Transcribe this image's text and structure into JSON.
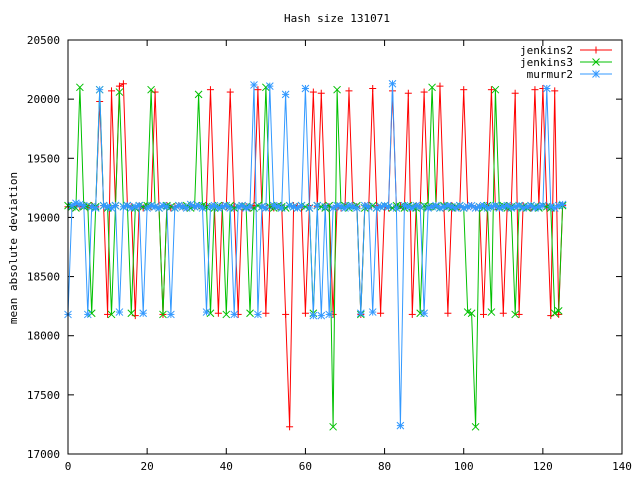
{
  "chart_data": {
    "type": "line",
    "title": "Hash size 131071",
    "xlabel": "",
    "ylabel": "mean absolute deviation",
    "xlim": [
      0,
      140
    ],
    "ylim": [
      17000,
      20500
    ],
    "xticks": [
      0,
      20,
      40,
      60,
      80,
      100,
      120,
      140
    ],
    "yticks": [
      17000,
      17500,
      18000,
      18500,
      19000,
      19500,
      20000,
      20500
    ],
    "grid": false,
    "legend_position": "top-right",
    "series": [
      {
        "name": "jenkins2",
        "color": "#ff0000",
        "marker": "plus",
        "x": [
          0,
          1,
          2,
          3,
          4,
          5,
          6,
          7,
          8,
          9,
          10,
          11,
          12,
          13,
          14,
          15,
          16,
          17,
          18,
          19,
          20,
          21,
          22,
          23,
          24,
          25,
          26,
          27,
          28,
          29,
          30,
          31,
          32,
          33,
          34,
          35,
          36,
          37,
          38,
          39,
          40,
          41,
          42,
          43,
          44,
          45,
          46,
          47,
          48,
          49,
          50,
          51,
          52,
          53,
          54,
          55,
          56,
          57,
          58,
          59,
          60,
          61,
          62,
          63,
          64,
          65,
          66,
          67,
          68,
          69,
          70,
          71,
          72,
          73,
          74,
          75,
          76,
          77,
          78,
          79,
          80,
          81,
          82,
          83,
          84,
          85,
          86,
          87,
          88,
          89,
          90,
          91,
          92,
          93,
          94,
          95,
          96,
          97,
          98,
          99,
          100,
          101,
          102,
          103,
          104,
          105,
          106,
          107,
          108,
          109,
          110,
          111,
          112,
          113,
          114,
          115,
          116,
          117,
          118,
          119,
          120,
          121,
          122,
          123,
          124,
          125
        ],
        "y": [
          19090,
          19080,
          19100,
          19090,
          19100,
          19080,
          19100,
          19090,
          19980,
          19100,
          18180,
          20070,
          19100,
          20110,
          20130,
          19100,
          19090,
          18170,
          19100,
          19080,
          19100,
          19090,
          20060,
          19090,
          18180,
          19100,
          19080,
          19090,
          19100,
          19090,
          19080,
          19100,
          19090,
          19100,
          19080,
          19100,
          20080,
          19090,
          18190,
          19100,
          19090,
          20060,
          19090,
          18180,
          19100,
          19090,
          19080,
          19100,
          20080,
          19090,
          18190,
          19100,
          19080,
          19090,
          19100,
          18180,
          17230,
          19100,
          19090,
          19080,
          18190,
          19100,
          20060,
          19090,
          20050,
          19100,
          19090,
          18180,
          19100,
          19080,
          19090,
          20070,
          19100,
          19090,
          18180,
          19100,
          19080,
          20090,
          19100,
          18190,
          19090,
          19080,
          20070,
          19090,
          19100,
          19080,
          20050,
          18180,
          19100,
          19090,
          20060,
          19080,
          19090,
          19100,
          20110,
          19090,
          18190,
          19100,
          19080,
          19090,
          20080,
          19090,
          19100,
          19080,
          19090,
          18180,
          19100,
          20080,
          19090,
          19080,
          18190,
          19100,
          19090,
          20050,
          18180,
          19100,
          19090,
          19080,
          20080,
          19100,
          20090,
          19090,
          18170,
          20070,
          18180,
          19100
        ]
      },
      {
        "name": "jenkins3",
        "color": "#00c000",
        "marker": "cross",
        "x": [
          0,
          1,
          2,
          3,
          4,
          5,
          6,
          7,
          8,
          9,
          10,
          11,
          12,
          13,
          14,
          15,
          16,
          17,
          18,
          19,
          20,
          21,
          22,
          23,
          24,
          25,
          26,
          27,
          28,
          29,
          30,
          31,
          32,
          33,
          34,
          35,
          36,
          37,
          38,
          39,
          40,
          41,
          42,
          43,
          44,
          45,
          46,
          47,
          48,
          49,
          50,
          51,
          52,
          53,
          54,
          55,
          56,
          57,
          58,
          59,
          60,
          61,
          62,
          63,
          64,
          65,
          66,
          67,
          68,
          69,
          70,
          71,
          72,
          73,
          74,
          75,
          76,
          77,
          78,
          79,
          80,
          81,
          82,
          83,
          84,
          85,
          86,
          87,
          88,
          89,
          90,
          91,
          92,
          93,
          94,
          95,
          96,
          97,
          98,
          99,
          100,
          101,
          102,
          103,
          104,
          105,
          106,
          107,
          108,
          109,
          110,
          111,
          112,
          113,
          114,
          115,
          116,
          117,
          118,
          119,
          120,
          121,
          122,
          123,
          124,
          125
        ],
        "y": [
          19100,
          19090,
          19080,
          20100,
          19090,
          19100,
          18190,
          19090,
          20080,
          19100,
          19080,
          18180,
          19100,
          20060,
          19090,
          19100,
          18190,
          19080,
          19100,
          19090,
          19100,
          20080,
          19090,
          19080,
          18180,
          19100,
          19090,
          19080,
          19100,
          19090,
          19100,
          19080,
          19090,
          20040,
          19100,
          19090,
          18190,
          19080,
          19100,
          19090,
          18180,
          19100,
          19080,
          19090,
          19100,
          19090,
          18190,
          19080,
          19100,
          19090,
          20100,
          19090,
          19080,
          19100,
          19090,
          19080,
          19100,
          19090,
          19080,
          19100,
          19090,
          19080,
          18190,
          19100,
          19090,
          19080,
          19100,
          17230,
          20080,
          19090,
          19100,
          19080,
          19090,
          19100,
          18180,
          19080,
          19090,
          19100,
          19080,
          19090,
          19100,
          19090,
          19080,
          19100,
          19090,
          19080,
          19100,
          19090,
          19080,
          18190,
          19100,
          19090,
          20100,
          19090,
          19080,
          19100,
          19090,
          19080,
          19090,
          19100,
          19080,
          18200,
          18190,
          17230,
          19090,
          19080,
          19100,
          18200,
          20080,
          19090,
          19100,
          19080,
          19090,
          18180,
          19100,
          19090,
          19080,
          19100,
          19090,
          19080,
          19100,
          19090,
          19080,
          18190,
          18210,
          19100
        ]
      },
      {
        "name": "murmur2",
        "color": "#3399ff",
        "marker": "star",
        "x": [
          0,
          1,
          2,
          3,
          4,
          5,
          6,
          7,
          8,
          9,
          10,
          11,
          12,
          13,
          14,
          15,
          16,
          17,
          18,
          19,
          20,
          21,
          22,
          23,
          24,
          25,
          26,
          27,
          28,
          29,
          30,
          31,
          32,
          33,
          34,
          35,
          36,
          37,
          38,
          39,
          40,
          41,
          42,
          43,
          44,
          45,
          46,
          47,
          48,
          49,
          50,
          51,
          52,
          53,
          54,
          55,
          56,
          57,
          58,
          59,
          60,
          61,
          62,
          63,
          64,
          65,
          66,
          67,
          68,
          69,
          70,
          71,
          72,
          73,
          74,
          75,
          76,
          77,
          78,
          79,
          80,
          81,
          82,
          83,
          84,
          85,
          86,
          87,
          88,
          89,
          90,
          91,
          92,
          93,
          94,
          95,
          96,
          97,
          98,
          99,
          100,
          101,
          102,
          103,
          104,
          105,
          106,
          107,
          108,
          109,
          110,
          111,
          112,
          113,
          114,
          115,
          116,
          117,
          118,
          119,
          120,
          121,
          122,
          123,
          124,
          125
        ],
        "y": [
          18180,
          19100,
          19120,
          19110,
          19100,
          18180,
          19090,
          19080,
          20080,
          19100,
          19090,
          19080,
          19100,
          18200,
          19090,
          19100,
          19080,
          19090,
          19100,
          18190,
          19080,
          19100,
          19090,
          19080,
          19100,
          19090,
          18180,
          19080,
          19100,
          19090,
          19080,
          19110,
          19090,
          19100,
          19080,
          18200,
          19090,
          19100,
          19080,
          19090,
          19100,
          19080,
          18180,
          19090,
          19100,
          19080,
          19090,
          20120,
          18180,
          19090,
          19080,
          20110,
          19100,
          19090,
          19080,
          20040,
          19100,
          19090,
          19080,
          19100,
          20090,
          19080,
          18170,
          19100,
          18170,
          19090,
          18180,
          19080,
          19100,
          19090,
          19080,
          19100,
          19090,
          19080,
          18190,
          19100,
          19090,
          18200,
          19080,
          19090,
          19100,
          19090,
          20130,
          19080,
          17240,
          19100,
          19090,
          19080,
          19100,
          19090,
          18190,
          19080,
          19090,
          19100,
          19080,
          19090,
          19100,
          19090,
          19080,
          19100,
          19080,
          19090,
          19100,
          19080,
          19090,
          19100,
          19080,
          19090,
          19100,
          19080,
          19090,
          19100,
          19080,
          19090,
          19100,
          19080,
          19090,
          19100,
          19080,
          19090,
          19100,
          20090,
          19090,
          19080,
          19100,
          19110
        ]
      }
    ]
  }
}
